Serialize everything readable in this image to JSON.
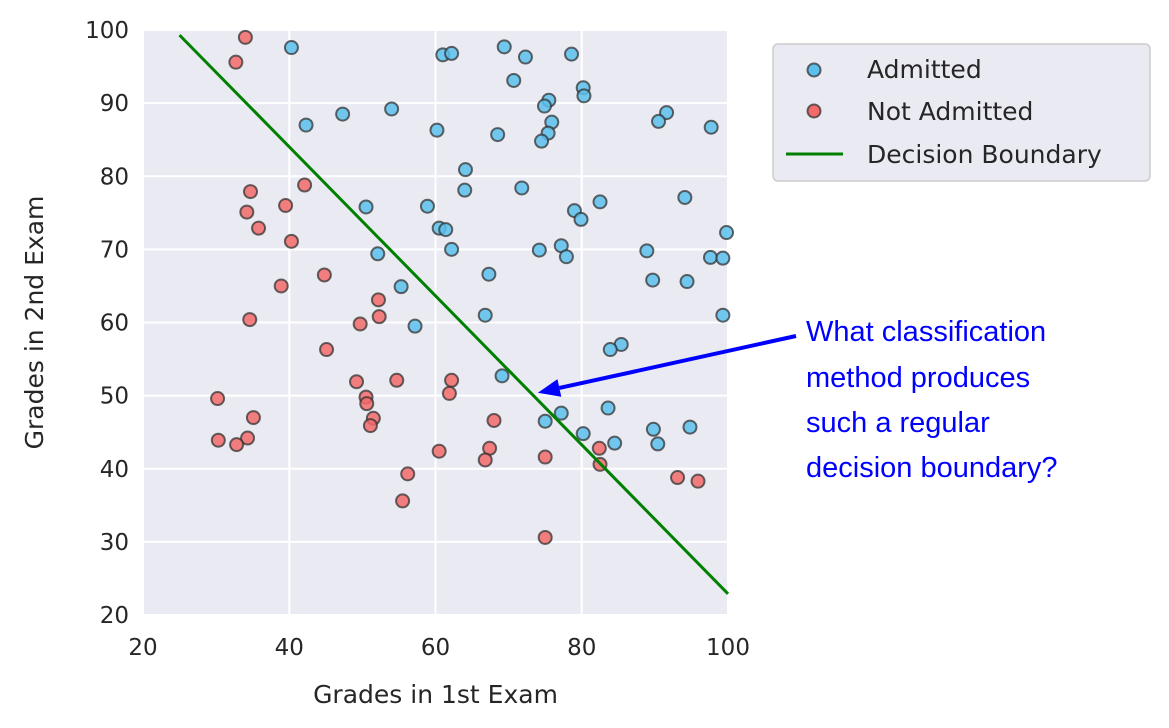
{
  "chart_data": {
    "type": "scatter",
    "xlabel": "Grades in 1st Exam",
    "ylabel": "Grades in 2nd Exam",
    "xlim": [
      20,
      100
    ],
    "ylim": [
      20,
      100
    ],
    "x_ticks": [
      "20",
      "40",
      "60",
      "80",
      "100"
    ],
    "y_ticks": [
      "20",
      "30",
      "40",
      "50",
      "60",
      "70",
      "80",
      "90",
      "100"
    ],
    "grid": true,
    "legend_position": "outside-right-top",
    "series": [
      {
        "name": "Admitted",
        "color": "#5bc0eb",
        "points": [
          [
            40.3,
            97.6
          ],
          [
            61.0,
            96.6
          ],
          [
            62.2,
            96.8
          ],
          [
            69.4,
            97.7
          ],
          [
            72.3,
            96.3
          ],
          [
            78.6,
            96.7
          ],
          [
            70.7,
            93.1
          ],
          [
            80.2,
            92.1
          ],
          [
            80.3,
            91.0
          ],
          [
            75.5,
            90.4
          ],
          [
            74.9,
            89.6
          ],
          [
            91.6,
            88.7
          ],
          [
            54.0,
            89.2
          ],
          [
            47.3,
            88.5
          ],
          [
            42.3,
            87.0
          ],
          [
            75.9,
            87.4
          ],
          [
            90.5,
            87.5
          ],
          [
            97.7,
            86.7
          ],
          [
            60.2,
            86.3
          ],
          [
            68.5,
            85.7
          ],
          [
            75.4,
            85.9
          ],
          [
            74.5,
            84.8
          ],
          [
            64.1,
            80.9
          ],
          [
            64.0,
            78.1
          ],
          [
            71.8,
            78.4
          ],
          [
            50.5,
            75.8
          ],
          [
            58.9,
            75.9
          ],
          [
            82.5,
            76.5
          ],
          [
            79.0,
            75.3
          ],
          [
            94.1,
            77.1
          ],
          [
            79.9,
            74.1
          ],
          [
            60.5,
            72.9
          ],
          [
            61.4,
            72.7
          ],
          [
            99.8,
            72.3
          ],
          [
            62.2,
            70.0
          ],
          [
            52.1,
            69.4
          ],
          [
            74.2,
            69.9
          ],
          [
            77.2,
            70.5
          ],
          [
            77.9,
            69.0
          ],
          [
            88.9,
            69.8
          ],
          [
            97.6,
            68.9
          ],
          [
            99.3,
            68.8
          ],
          [
            67.3,
            66.6
          ],
          [
            89.7,
            65.8
          ],
          [
            94.4,
            65.6
          ],
          [
            55.3,
            64.9
          ],
          [
            66.8,
            61.0
          ],
          [
            99.3,
            61.0
          ],
          [
            57.2,
            59.5
          ],
          [
            85.4,
            57.0
          ],
          [
            83.9,
            56.3
          ],
          [
            69.1,
            52.7
          ],
          [
            77.2,
            47.6
          ],
          [
            75.0,
            46.5
          ],
          [
            83.6,
            48.3
          ],
          [
            89.8,
            45.4
          ],
          [
            94.8,
            45.7
          ],
          [
            80.2,
            44.8
          ],
          [
            84.5,
            43.5
          ],
          [
            90.4,
            43.4
          ]
        ]
      },
      {
        "name": "Not Admitted",
        "color": "#f26a6a",
        "points": [
          [
            34.0,
            99.0
          ],
          [
            32.7,
            95.6
          ],
          [
            42.1,
            78.8
          ],
          [
            34.7,
            77.9
          ],
          [
            39.5,
            76.0
          ],
          [
            34.2,
            75.1
          ],
          [
            35.8,
            72.9
          ],
          [
            40.3,
            71.1
          ],
          [
            44.8,
            66.5
          ],
          [
            38.9,
            65.0
          ],
          [
            52.2,
            63.1
          ],
          [
            52.3,
            60.8
          ],
          [
            34.6,
            60.4
          ],
          [
            49.7,
            59.8
          ],
          [
            45.1,
            56.3
          ],
          [
            49.2,
            51.9
          ],
          [
            54.7,
            52.1
          ],
          [
            62.2,
            52.1
          ],
          [
            61.9,
            50.3
          ],
          [
            50.5,
            49.8
          ],
          [
            50.6,
            48.9
          ],
          [
            30.2,
            49.6
          ],
          [
            35.1,
            47.0
          ],
          [
            51.5,
            46.9
          ],
          [
            51.1,
            45.9
          ],
          [
            68.0,
            46.6
          ],
          [
            30.3,
            43.9
          ],
          [
            34.3,
            44.2
          ],
          [
            32.8,
            43.3
          ],
          [
            60.5,
            42.4
          ],
          [
            67.4,
            42.8
          ],
          [
            82.4,
            42.8
          ],
          [
            82.5,
            40.6
          ],
          [
            66.8,
            41.2
          ],
          [
            75.0,
            41.6
          ],
          [
            93.1,
            38.8
          ],
          [
            95.9,
            38.3
          ],
          [
            56.2,
            39.3
          ],
          [
            55.5,
            35.6
          ],
          [
            75.0,
            30.6
          ]
        ]
      },
      {
        "name": "Decision Boundary",
        "color": "#008000",
        "type": "line",
        "points": [
          [
            25.0,
            99.3
          ],
          [
            100.0,
            22.9
          ]
        ]
      }
    ],
    "annotation": {
      "text_lines": [
        "What classification",
        "method produces",
        "such a regular",
        "decision boundary?"
      ],
      "color": "#0000ff",
      "arrow_target": [
        74.0,
        50.4
      ]
    }
  }
}
